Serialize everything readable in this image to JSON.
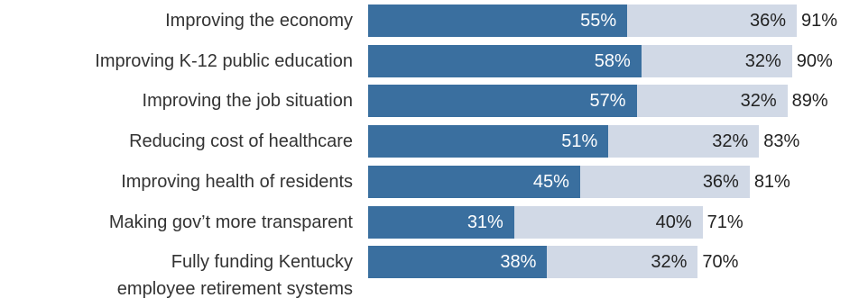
{
  "chart_data": {
    "type": "bar",
    "orientation": "horizontal",
    "stacked": true,
    "categories": [
      "Improving the economy",
      "Improving K-12 public education",
      "Improving the job situation",
      "Reducing cost of healthcare",
      "Improving health of residents",
      "Making gov’t more transparent",
      "Fully funding Kentucky employee retirement systems"
    ],
    "category_lines": [
      [
        "Improving the economy"
      ],
      [
        "Improving K-12 public education"
      ],
      [
        "Improving the job situation"
      ],
      [
        "Reducing cost of healthcare"
      ],
      [
        "Improving health of residents"
      ],
      [
        "Making gov’t more transparent"
      ],
      [
        "Fully funding Kentucky",
        "employee retirement systems"
      ]
    ],
    "series": [
      {
        "color": "#3a6f9f",
        "values": [
          55,
          58,
          57,
          51,
          45,
          31,
          38
        ],
        "labels": [
          "55%",
          "58%",
          "57%",
          "51%",
          "45%",
          "31%",
          "38%"
        ]
      },
      {
        "color": "#d1d9e6",
        "values": [
          36,
          32,
          32,
          32,
          36,
          40,
          32
        ],
        "labels": [
          "36%",
          "32%",
          "32%",
          "32%",
          "36%",
          "40%",
          "32%"
        ]
      }
    ],
    "totals": [
      91,
      90,
      89,
      83,
      81,
      71,
      70
    ],
    "total_labels": [
      "91%",
      "90%",
      "89%",
      "83%",
      "81%",
      "71%",
      "70%"
    ],
    "title": "",
    "xlabel": "",
    "ylabel": "",
    "xlim": [
      0,
      100
    ],
    "grid": false,
    "legend": "none"
  }
}
